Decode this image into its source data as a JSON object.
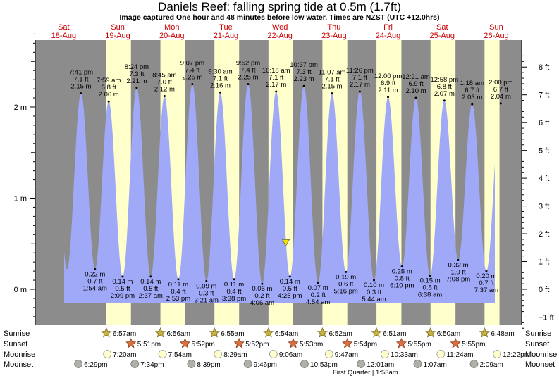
{
  "header": {
    "title": "Daniels Reef: falling  spring tide at 0.5m (1.7ft)",
    "subtitle": "Image captured One hour and 48 minutes before low water. Times are NZST (UTC +12.0hrs)"
  },
  "colors": {
    "night": "#8c8c8c",
    "day": "#ffffcc",
    "water": "#a0a8f8",
    "day_label": "#cc0000"
  },
  "chart_data": {
    "type": "area",
    "title": "Daniels Reef: falling  spring tide at 0.5m (1.7ft)",
    "x_unit": "days since Sat 18-Aug 00:00 (NZST)",
    "y_unit": "m",
    "ylim": [
      -0.35,
      2.85
    ],
    "left_ticks": [
      {
        "value": 0,
        "label": "0 m"
      },
      {
        "value": 1,
        "label": "1 m"
      },
      {
        "value": 2,
        "label": "2 m"
      }
    ],
    "right_ticks": [
      {
        "value": -1,
        "label": "−1 ft"
      },
      {
        "value": 0,
        "label": "0 ft"
      },
      {
        "value": 1,
        "label": "1 ft"
      },
      {
        "value": 2,
        "label": "2 ft"
      },
      {
        "value": 3,
        "label": "3 ft"
      },
      {
        "value": 4,
        "label": "4 ft"
      },
      {
        "value": 5,
        "label": "5 ft"
      },
      {
        "value": 6,
        "label": "6 ft"
      },
      {
        "value": 7,
        "label": "7 ft"
      },
      {
        "value": 8,
        "label": "8 ft"
      }
    ],
    "days": [
      {
        "name": "Sat",
        "date": "18-Aug"
      },
      {
        "name": "Sun",
        "date": "19-Aug"
      },
      {
        "name": "Mon",
        "date": "20-Aug"
      },
      {
        "name": "Tue",
        "date": "21-Aug"
      },
      {
        "name": "Wed",
        "date": "22-Aug"
      },
      {
        "name": "Thu",
        "date": "23-Aug"
      },
      {
        "name": "Fri",
        "date": "24-Aug"
      },
      {
        "name": "Sat",
        "date": "25-Aug"
      },
      {
        "name": "Sun",
        "date": "26-Aug"
      }
    ],
    "extremes": [
      {
        "t": 0.8201,
        "type": "high",
        "m": "2.15 m",
        "ft": "7.1 ft",
        "time": "7:41 pm",
        "h": 2.15
      },
      {
        "t": 1.0792,
        "type": "low",
        "m": "0.22 m",
        "ft": "0.7 ft",
        "time": "1:54 am",
        "h": 0.22
      },
      {
        "t": 1.3326,
        "type": "high",
        "m": "2.06 m",
        "ft": "6.8 ft",
        "time": "7:59 am",
        "h": 2.06
      },
      {
        "t": 1.5896,
        "type": "low",
        "m": "0.14 m",
        "ft": "0.5 ft",
        "time": "2:09 pm",
        "h": 0.14
      },
      {
        "t": 1.85,
        "type": "high",
        "m": "2.21 m",
        "ft": "7.3 ft",
        "time": "8:24 pm",
        "h": 2.21
      },
      {
        "t": 2.109,
        "type": "low",
        "m": "0.14 m",
        "ft": "0.5 ft",
        "time": "2:37 am",
        "h": 0.14
      },
      {
        "t": 2.3646,
        "type": "high",
        "m": "2.12 m",
        "ft": "7.0 ft",
        "time": "8:45 am",
        "h": 2.12
      },
      {
        "t": 2.6201,
        "type": "low",
        "m": "0.11 m",
        "ft": "0.4 ft",
        "time": "2:53 pm",
        "h": 0.11
      },
      {
        "t": 2.8799,
        "type": "high",
        "m": "2.25 m",
        "ft": "7.4 ft",
        "time": "9:07 pm",
        "h": 2.25
      },
      {
        "t": 3.1396,
        "type": "low",
        "m": "0.09 m",
        "ft": "0.3 ft",
        "time": "3:21 am",
        "h": 0.09
      },
      {
        "t": 3.3958,
        "type": "high",
        "m": "2.16 m",
        "ft": "7.1 ft",
        "time": "9:30 am",
        "h": 2.16
      },
      {
        "t": 3.6514,
        "type": "low",
        "m": "0.11 m",
        "ft": "0.4 ft",
        "time": "3:38 pm",
        "h": 0.11
      },
      {
        "t": 3.9111,
        "type": "high",
        "m": "2.25 m",
        "ft": "7.4 ft",
        "time": "9:52 pm",
        "h": 2.25
      },
      {
        "t": 4.1708,
        "type": "low",
        "m": "0.06 m",
        "ft": "0.2 ft",
        "time": "4:06 am",
        "h": 0.06
      },
      {
        "t": 4.4292,
        "type": "high",
        "m": "2.17 m",
        "ft": "7.1 ft",
        "time": "10:18 am",
        "h": 2.17
      },
      {
        "t": 4.684,
        "type": "low",
        "m": "0.14 m",
        "ft": "0.5 ft",
        "time": "4:25 pm",
        "h": 0.14
      },
      {
        "t": 4.9424,
        "type": "high",
        "m": "2.23 m",
        "ft": "7.3 ft",
        "time": "10:37 pm",
        "h": 2.23
      },
      {
        "t": 5.2042,
        "type": "low",
        "m": "0.07 m",
        "ft": "0.2 ft",
        "time": "4:54 am",
        "h": 0.07
      },
      {
        "t": 5.4632,
        "type": "high",
        "m": "2.15 m",
        "ft": "7.1 ft",
        "time": "11:07 am",
        "h": 2.15
      },
      {
        "t": 5.7194,
        "type": "low",
        "m": "0.19 m",
        "ft": "0.6 ft",
        "time": "5:16 pm",
        "h": 0.19
      },
      {
        "t": 5.9764,
        "type": "high",
        "m": "2.17 m",
        "ft": "7.1 ft",
        "time": "11:26 pm",
        "h": 2.17
      },
      {
        "t": 6.2389,
        "type": "low",
        "m": "0.10 m",
        "ft": "0.3 ft",
        "time": "5:44 am",
        "h": 0.1
      },
      {
        "t": 6.5,
        "type": "high",
        "m": "2.11 m",
        "ft": "6.9 ft",
        "time": "12:00 pm",
        "h": 2.11
      },
      {
        "t": 6.7569,
        "type": "low",
        "m": "0.25 m",
        "ft": "0.8 ft",
        "time": "6:10 pm",
        "h": 0.25
      },
      {
        "t": 7.0146,
        "type": "high",
        "m": "2.10 m",
        "ft": "6.9 ft",
        "time": "12:21 am",
        "h": 2.1
      },
      {
        "t": 7.2764,
        "type": "low",
        "m": "0.15 m",
        "ft": "0.5 ft",
        "time": "6:38 am",
        "h": 0.15
      },
      {
        "t": 7.5403,
        "type": "high",
        "m": "2.07 m",
        "ft": "6.8 ft",
        "time": "12:58 pm",
        "h": 2.07
      },
      {
        "t": 7.7972,
        "type": "low",
        "m": "0.32 m",
        "ft": "1.0 ft",
        "time": "7:08 pm",
        "h": 0.32
      },
      {
        "t": 8.0542,
        "type": "high",
        "m": "2.03 m",
        "ft": "6.7 ft",
        "time": "1:18 am",
        "h": 2.03
      },
      {
        "t": 8.3174,
        "type": "low",
        "m": "0.20 m",
        "ft": "0.7 ft",
        "time": "7:37 am",
        "h": 0.2
      },
      {
        "t": 8.5833,
        "type": "high",
        "m": "2.04 m",
        "ft": "6.7 ft",
        "time": "2:00 pm",
        "h": 2.04
      }
    ],
    "current": {
      "t": 4.609,
      "h": 0.5
    }
  },
  "almanac": {
    "row_labels": [
      "Sunrise",
      "Sunset",
      "Moonrise",
      "Moonset"
    ],
    "sunrise": [
      {
        "t": 1.2889,
        "label": "6:57am"
      },
      {
        "t": 2.2889,
        "label": "6:56am"
      },
      {
        "t": 3.2882,
        "label": "6:55am"
      },
      {
        "t": 4.2875,
        "label": "6:54am"
      },
      {
        "t": 5.2861,
        "label": "6:52am"
      },
      {
        "t": 6.2854,
        "label": "6:51am"
      },
      {
        "t": 7.2847,
        "label": "6:50am"
      },
      {
        "t": 8.2833,
        "label": "6:48am"
      }
    ],
    "sunset": [
      {
        "t": 1.7438,
        "label": "5:51pm"
      },
      {
        "t": 2.7444,
        "label": "5:52pm"
      },
      {
        "t": 3.7444,
        "label": "5:52pm"
      },
      {
        "t": 4.7451,
        "label": "5:53pm"
      },
      {
        "t": 5.7458,
        "label": "5:54pm"
      },
      {
        "t": 6.7465,
        "label": "5:55pm"
      },
      {
        "t": 7.7465,
        "label": "5:55pm"
      }
    ],
    "moonrise": [
      {
        "t": 1.3056,
        "label": "7:20am"
      },
      {
        "t": 2.3292,
        "label": "7:54am"
      },
      {
        "t": 3.3535,
        "label": "8:29am"
      },
      {
        "t": 4.3792,
        "label": "9:06am"
      },
      {
        "t": 5.4076,
        "label": "9:47am"
      },
      {
        "t": 6.4396,
        "label": "10:33am"
      },
      {
        "t": 7.475,
        "label": "11:24am"
      },
      {
        "t": 8.5153,
        "label": "12:22pm"
      }
    ],
    "moonset": [
      {
        "t": 0.7701,
        "label": "6:29pm"
      },
      {
        "t": 1.8153,
        "label": "7:34pm"
      },
      {
        "t": 2.8604,
        "label": "8:39pm"
      },
      {
        "t": 3.9069,
        "label": "9:46pm"
      },
      {
        "t": 4.9535,
        "label": "10:53pm"
      },
      {
        "t": 6.0007,
        "label": "12:01am"
      },
      {
        "t": 7.0465,
        "label": "1:07am"
      },
      {
        "t": 8.0896,
        "label": "2:09am"
      }
    ],
    "moon_phase": {
      "t": 6.0799,
      "label": "First Quarter | 1:53am"
    }
  }
}
